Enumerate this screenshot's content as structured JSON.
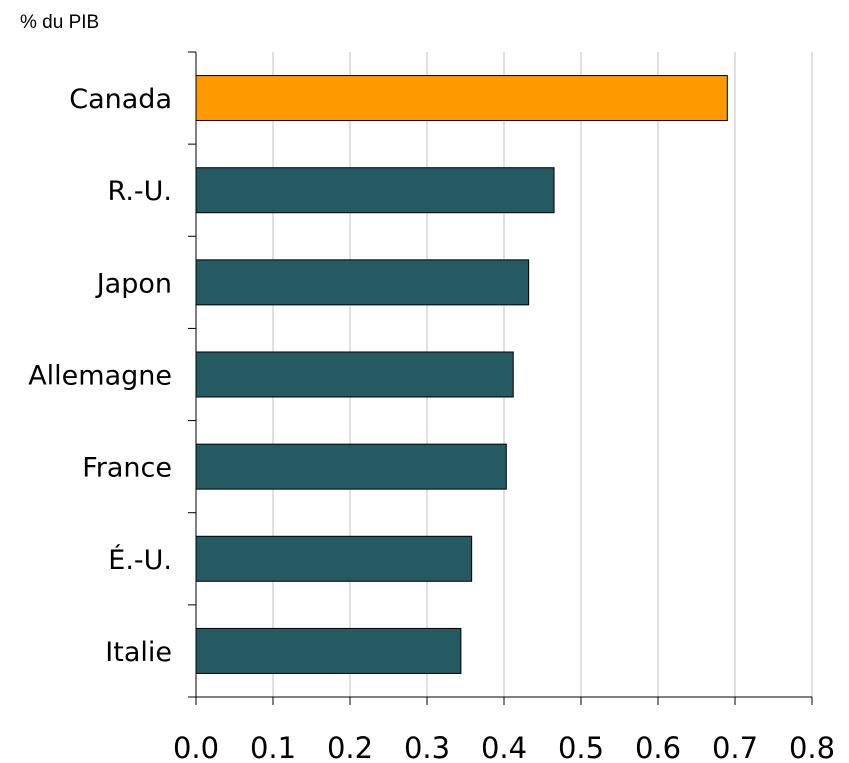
{
  "chart_data": {
    "type": "bar",
    "orientation": "horizontal",
    "unit_label": "% du PIB",
    "categories": [
      "Canada",
      "R.-U.",
      "Japon",
      "Allemagne",
      "France",
      "É.-U.",
      "Italie"
    ],
    "values": [
      0.69,
      0.465,
      0.432,
      0.412,
      0.403,
      0.358,
      0.344
    ],
    "xlim": [
      0.0,
      0.8
    ],
    "x_ticks": [
      "0.0",
      "0.1",
      "0.2",
      "0.3",
      "0.4",
      "0.5",
      "0.6",
      "0.7",
      "0.8"
    ],
    "grid": "vertical",
    "colors": {
      "highlight": "#FF9900",
      "bar": "#255A63",
      "grid": "#C0C0C0",
      "axis": "#000000"
    },
    "highlight_category": "Canada"
  }
}
